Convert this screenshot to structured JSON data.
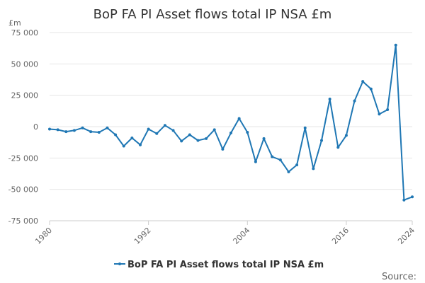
{
  "chart_data": {
    "type": "line",
    "title": "BoP FA PI Asset flows total IP NSA £m",
    "unit_label": "£m",
    "source_label": "Source:",
    "ylim": [
      -75000,
      75000
    ],
    "y_ticks": [
      75000,
      50000,
      25000,
      0,
      -25000,
      -50000,
      -75000
    ],
    "y_tick_labels": [
      "75 000",
      "50 000",
      "25 000",
      "0",
      "-25 000",
      "-50 000",
      "-75 000"
    ],
    "xlim": [
      1980,
      2024
    ],
    "x_tick_values": [
      1980,
      1992,
      2004,
      2016,
      2024
    ],
    "x_tick_labels": [
      "1980",
      "1992",
      "2004",
      "2016",
      "2024"
    ],
    "grid": true,
    "legend_position": "bottom",
    "colors": {
      "series": "#1f77b4",
      "grid": "#e6e6e6"
    },
    "series": [
      {
        "name": "BoP FA PI Asset flows total IP NSA £m",
        "x": [
          1980,
          1981,
          1982,
          1983,
          1984,
          1985,
          1986,
          1987,
          1988,
          1989,
          1990,
          1991,
          1992,
          1993,
          1994,
          1995,
          1996,
          1997,
          1998,
          1999,
          2000,
          2001,
          2002,
          2003,
          2004,
          2005,
          2006,
          2007,
          2008,
          2009,
          2010,
          2011,
          2012,
          2013,
          2014,
          2015,
          2016,
          2017,
          2018,
          2019,
          2020,
          2021,
          2022,
          2023,
          2024
        ],
        "values": [
          -2000,
          -2500,
          -4000,
          -3000,
          -1000,
          -4000,
          -4500,
          -1000,
          -6500,
          -15500,
          -9000,
          -14500,
          -2000,
          -5500,
          1000,
          -3000,
          -11500,
          -6500,
          -11000,
          -9500,
          -2500,
          -18000,
          -5000,
          6500,
          -4500,
          -28000,
          -9500,
          -24000,
          -26500,
          -36000,
          -30500,
          -1000,
          -33500,
          -11000,
          22000,
          -16500,
          -7000,
          20500,
          36000,
          30000,
          10000,
          13500,
          65000,
          -58500,
          -56000
        ]
      }
    ]
  }
}
